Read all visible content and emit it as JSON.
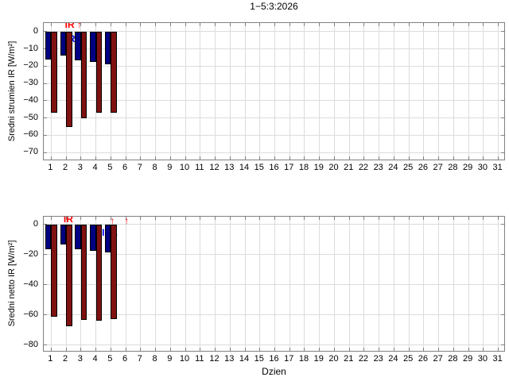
{
  "title": "1−5:3:2026",
  "xlabel": "Dzien",
  "colors": {
    "bar_blue": "#000082",
    "bar_red": "#801111",
    "bar_edge": "#000000",
    "grid": "#DCDCDC",
    "axis_border": "#808080",
    "annotation_red": "#FF0000",
    "annotation_blue": "#0000FF",
    "background": "#FFFFFF"
  },
  "chart_data": [
    {
      "id": "top",
      "type": "bar",
      "ylabel": "Sredni strumien IR [W/m²]",
      "x": [
        1,
        2,
        3,
        4,
        5
      ],
      "series": [
        {
          "name": "IR ↓",
          "color": "#000082",
          "values": [
            -16,
            -14,
            -16.5,
            -17.5,
            -19
          ]
        },
        {
          "name": "IR ↑",
          "color": "#801111",
          "values": [
            -47,
            -55,
            -50,
            -47,
            -47
          ]
        }
      ],
      "xticks": [
        1,
        2,
        3,
        4,
        5,
        6,
        7,
        8,
        9,
        10,
        11,
        12,
        13,
        14,
        15,
        16,
        17,
        18,
        19,
        20,
        21,
        22,
        23,
        24,
        25,
        26,
        27,
        28,
        29,
        30,
        31
      ],
      "xlim": [
        0.5,
        31.5
      ],
      "ylim": [
        -75,
        5
      ],
      "yticks": [
        0,
        -10,
        -20,
        -30,
        -40,
        -50,
        -60,
        -70
      ],
      "grid": true,
      "annotations": [
        {
          "text": "IR ↑",
          "color": "#FF0000",
          "x_day": 1.92,
          "y_top": 6.8,
          "layer": "front"
        },
        {
          "text": "IR ↓",
          "color": "#0000FF",
          "x_day": 1.97,
          "y_top": -1.5,
          "layer": "back"
        }
      ]
    },
    {
      "id": "bottom",
      "type": "bar",
      "ylabel": "Sredni netto IR [W/m²]",
      "x": [
        1,
        2,
        3,
        4,
        5
      ],
      "series": [
        {
          "name": "IR ↓",
          "color": "#000082",
          "values": [
            -16.5,
            -13.5,
            -16.5,
            -17.5,
            -18.5
          ]
        },
        {
          "name": "IR ↑",
          "color": "#801111",
          "values": [
            -61.5,
            -67.5,
            -63.5,
            -64,
            -63
          ]
        }
      ],
      "xticks": [
        1,
        2,
        3,
        4,
        5,
        6,
        7,
        8,
        9,
        10,
        11,
        12,
        13,
        14,
        15,
        16,
        17,
        18,
        19,
        20,
        21,
        22,
        23,
        24,
        25,
        26,
        27,
        28,
        29,
        30,
        31
      ],
      "xlim": [
        0.5,
        31.5
      ],
      "ylim": [
        -85,
        5
      ],
      "yticks": [
        0,
        -20,
        -40,
        -60,
        -80
      ],
      "grid": true,
      "annotations": [
        {
          "text": "IR",
          "color": "#FF0000",
          "x_day": 1.83,
          "y_top": 6.5,
          "layer": "front"
        },
        {
          "text": "↑",
          "color": "#FF0000",
          "x_day": 4.95,
          "y_top": 5.5,
          "layer": "back"
        },
        {
          "text": "↑",
          "color": "#FF0000",
          "x_day": 5.9,
          "y_top": 5.5,
          "layer": "front"
        },
        {
          "text": "IR ↓",
          "color": "#0000FF",
          "x_day": 4.4,
          "y_top": -2.5,
          "layer": "back"
        }
      ]
    }
  ]
}
